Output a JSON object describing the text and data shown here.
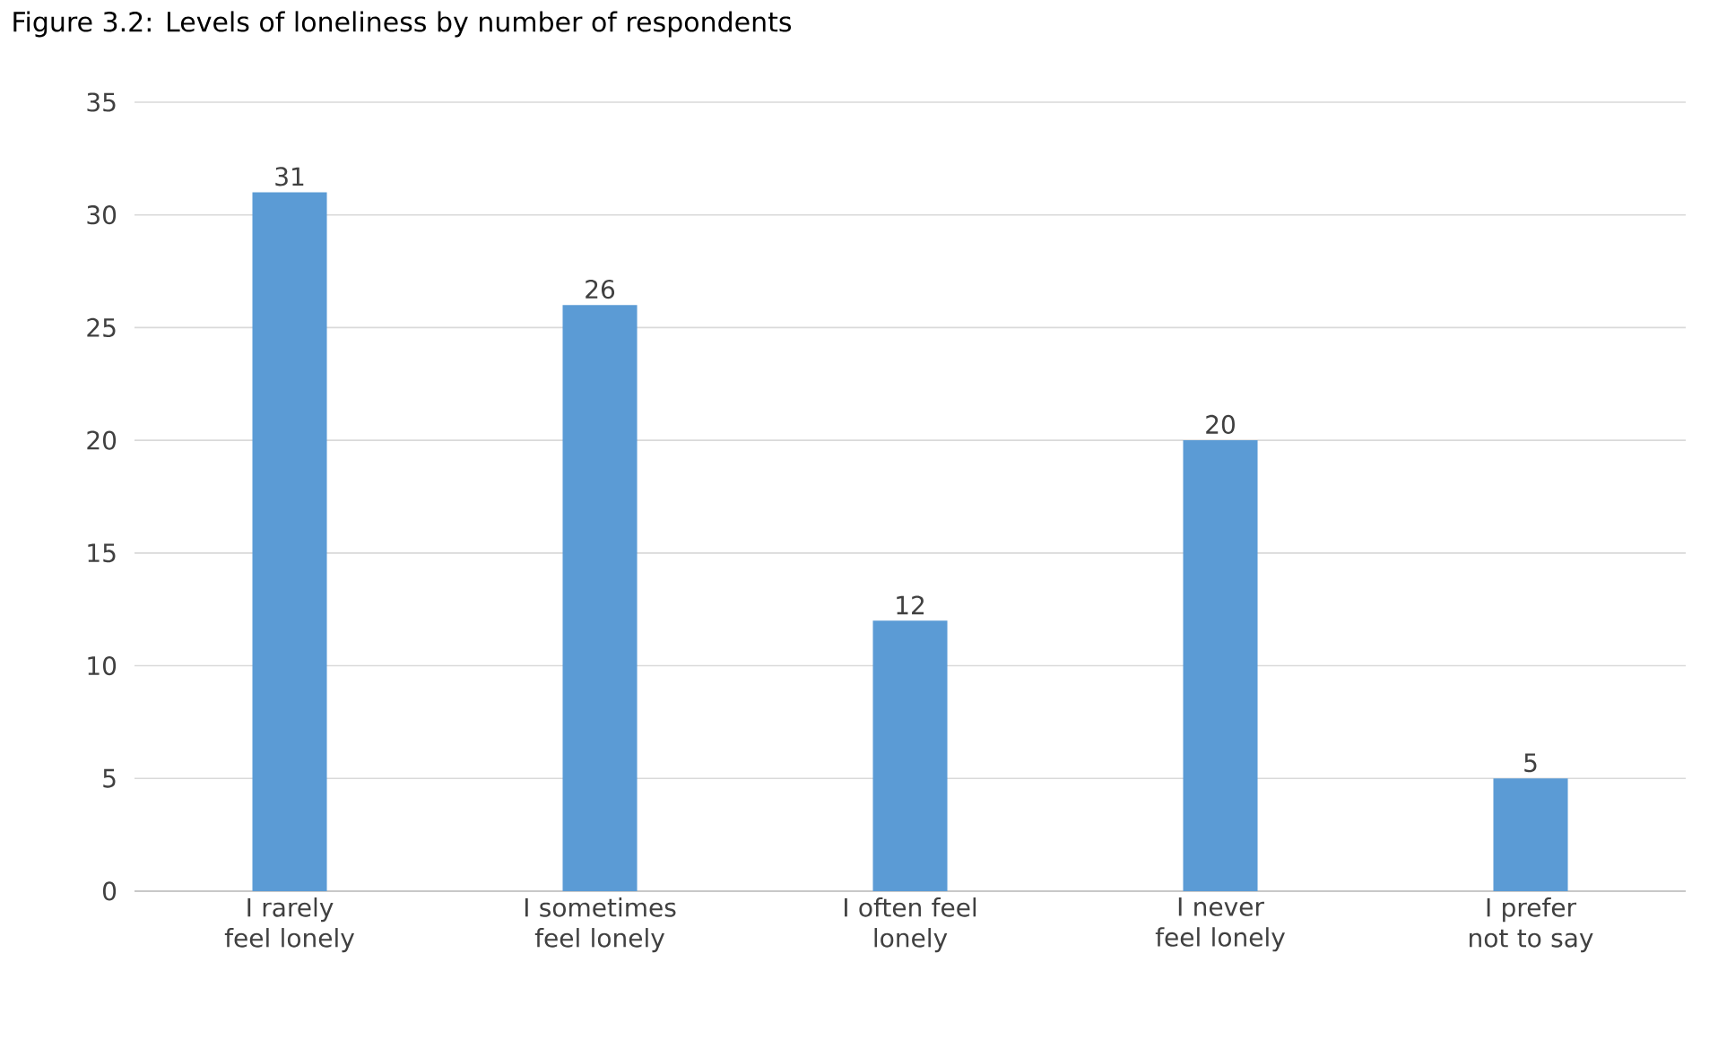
{
  "chart_data": {
    "type": "bar",
    "title": "Figure 3.2: Levels of loneliness by number of respondents",
    "categories": [
      "I rarely feel lonely",
      "I sometimes feel lonely",
      "I often feel lonely",
      "I never feel lonely",
      "I prefer not to say"
    ],
    "values": [
      31,
      26,
      12,
      20,
      5
    ],
    "color": "#5b9bd5",
    "data_labels": true,
    "ylim": [
      0,
      35
    ],
    "yticks": [
      0,
      5,
      10,
      15,
      20,
      25,
      30,
      35
    ],
    "grid": "y"
  }
}
